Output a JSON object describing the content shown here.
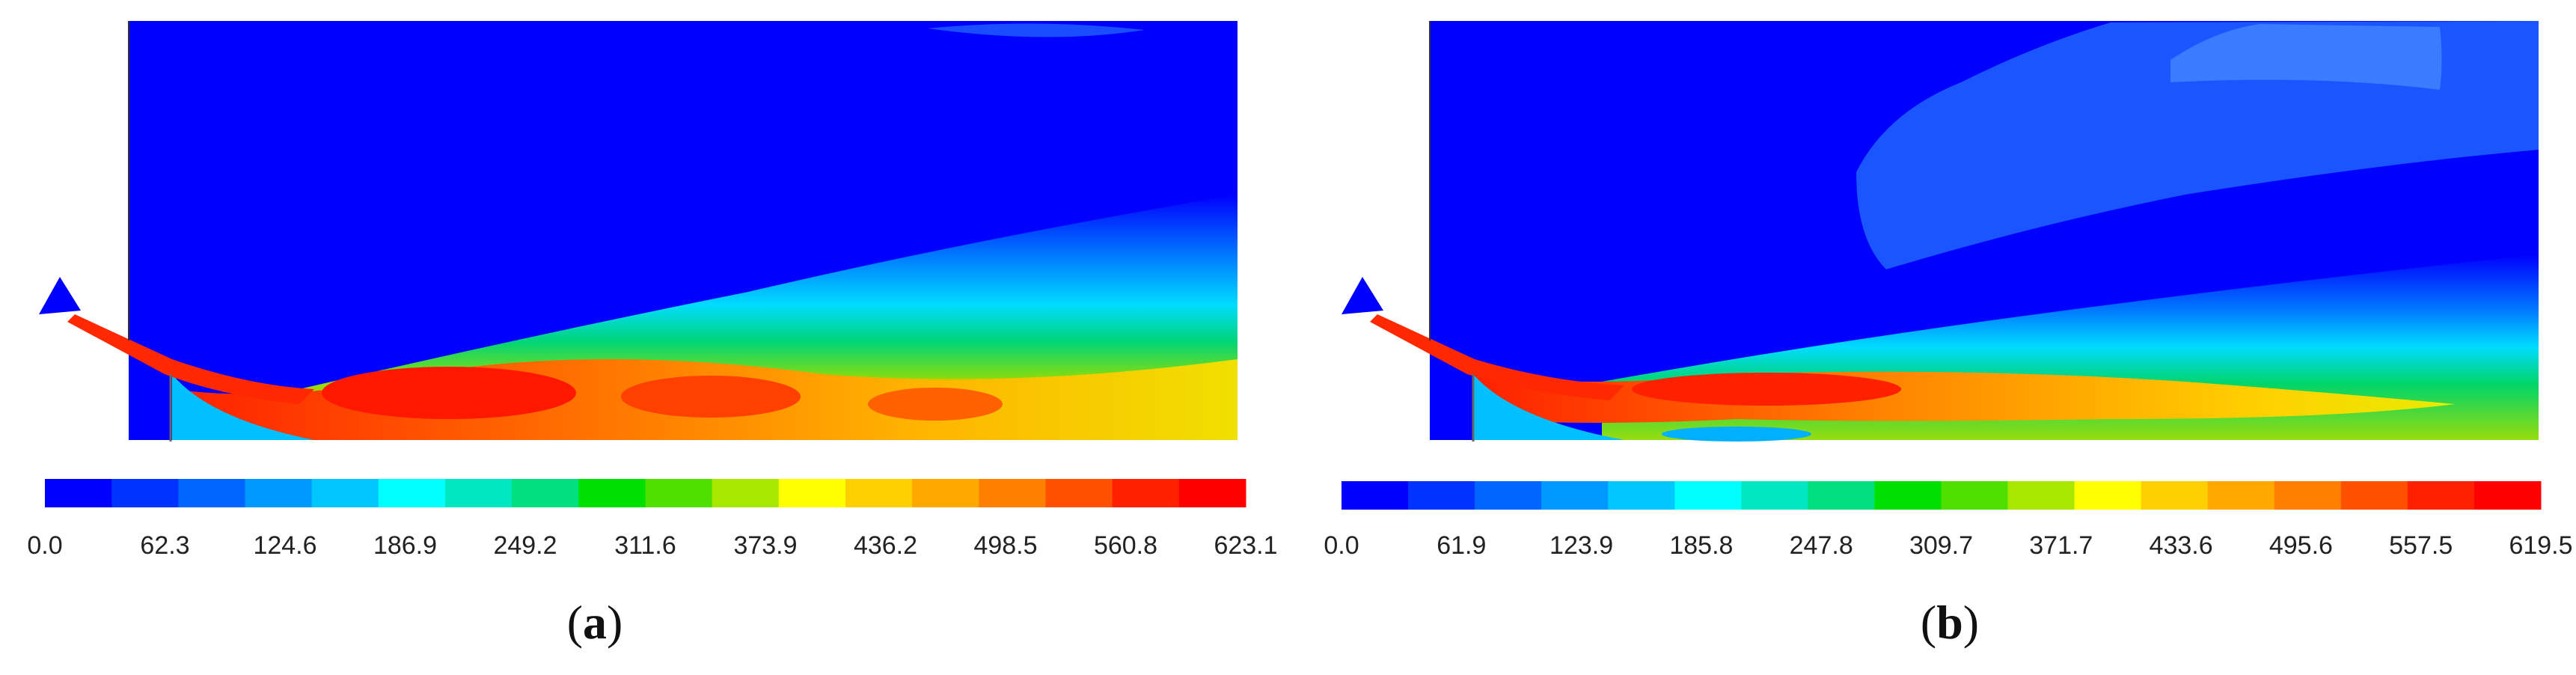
{
  "panels": [
    {
      "id": "a",
      "label_open": "(",
      "label_letter": "a",
      "label_close": ")",
      "colorbar": {
        "ticks": [
          "0.0",
          "62.3",
          "124.6",
          "186.9",
          "249.2",
          "311.6",
          "373.9",
          "436.2",
          "498.5",
          "560.8",
          "623.1"
        ],
        "colors": [
          "#0000ff",
          "#0033ff",
          "#0066ff",
          "#0099ff",
          "#00c8ff",
          "#00ffff",
          "#00e8c0",
          "#00e080",
          "#00e000",
          "#50e000",
          "#a8e800",
          "#ffff00",
          "#ffd000",
          "#ffa800",
          "#ff8000",
          "#ff5000",
          "#ff2000",
          "#ff0000"
        ]
      }
    },
    {
      "id": "b",
      "label_open": "(",
      "label_letter": "b",
      "label_close": ")",
      "colorbar": {
        "ticks": [
          "0.0",
          "61.9",
          "123.9",
          "185.8",
          "247.8",
          "309.7",
          "371.7",
          "433.6",
          "495.6",
          "557.5",
          "619.5"
        ],
        "colors": [
          "#0000ff",
          "#0033ff",
          "#0066ff",
          "#0099ff",
          "#00c8ff",
          "#00ffff",
          "#00e8c0",
          "#00e080",
          "#00e000",
          "#50e000",
          "#a8e800",
          "#ffff00",
          "#ffd000",
          "#ffa800",
          "#ff8000",
          "#ff5000",
          "#ff2000",
          "#ff0000"
        ]
      }
    }
  ]
}
